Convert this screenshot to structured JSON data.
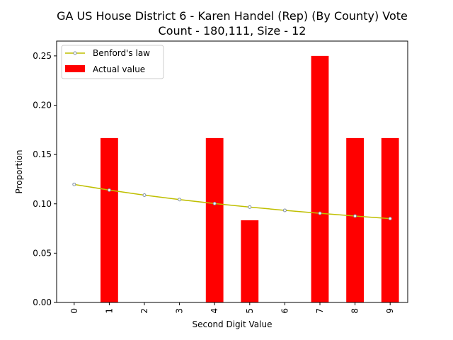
{
  "chart_data": {
    "type": "bar",
    "title_lines": [
      "GA US House District 6 - Karen Handel (Rep) (By County) Vote",
      "Count - 180,111, Size - 12"
    ],
    "xlabel": "Second Digit Value",
    "ylabel": "Proportion",
    "categories": [
      "0",
      "1",
      "2",
      "3",
      "4",
      "5",
      "6",
      "7",
      "8",
      "9"
    ],
    "ylim": [
      0,
      0.265
    ],
    "yticks": [
      "0.00",
      "0.05",
      "0.10",
      "0.15",
      "0.20",
      "0.25"
    ],
    "grid": false,
    "legend_position": "top-left",
    "series": [
      {
        "name": "Actual value",
        "kind": "bar",
        "color": "#ff0000",
        "values": [
          0.0,
          0.1667,
          0.0,
          0.0,
          0.1667,
          0.0833,
          0.0,
          0.25,
          0.1667,
          0.1667
        ]
      },
      {
        "name": "Benford's law",
        "kind": "line",
        "color": "#bfbf00",
        "marker_color": "#7f8fa6",
        "values": [
          0.1197,
          0.1139,
          0.1088,
          0.1043,
          0.1003,
          0.0967,
          0.0934,
          0.0904,
          0.0876,
          0.085
        ]
      }
    ]
  }
}
